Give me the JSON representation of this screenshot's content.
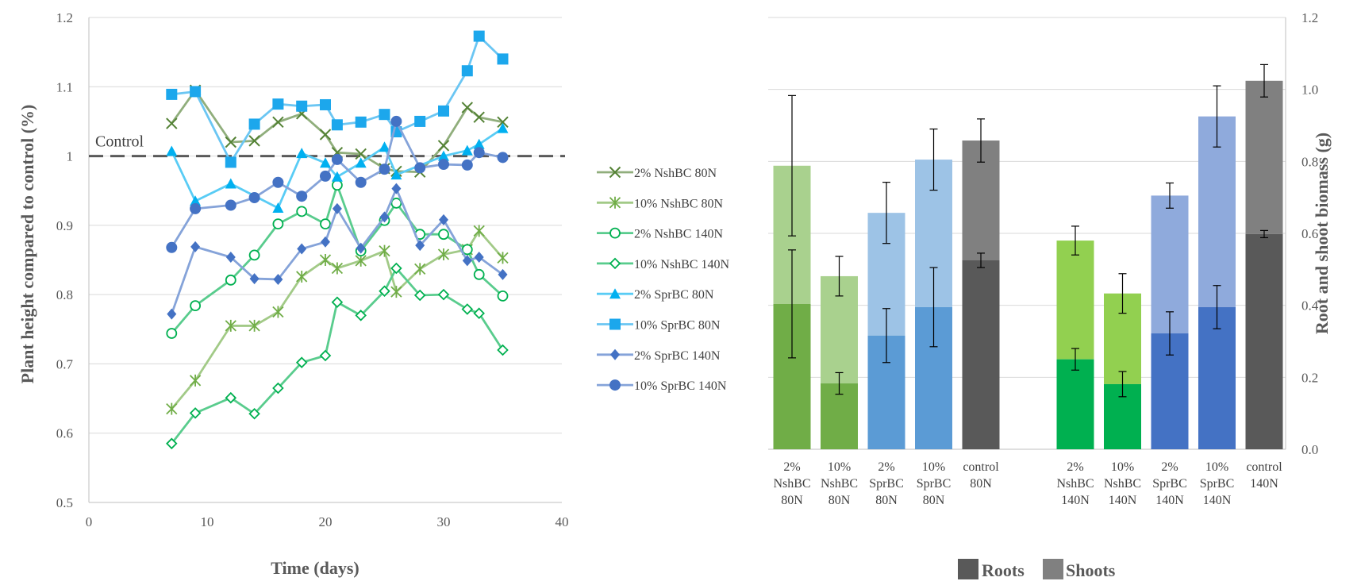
{
  "chart_data": [
    {
      "type": "line",
      "ylabel": "Plant height compared to control (%)",
      "xlabel": "Time (days)",
      "xlim": [
        0,
        40
      ],
      "ylim": [
        0.5,
        1.2
      ],
      "xticks": [
        "0",
        "10",
        "20",
        "30",
        "40"
      ],
      "yticks": [
        "0.5",
        "0.6",
        "0.7",
        "0.8",
        "0.9",
        "1",
        "1.1",
        "1.2"
      ],
      "grid": true,
      "legend": "right",
      "annotation": "Control",
      "control_line": 1.0,
      "series": [
        {
          "name": "2% NshBC 80N",
          "color": "#548235",
          "marker": "x",
          "x": [
            7,
            9,
            12,
            14,
            16,
            18,
            20,
            21,
            23,
            25,
            26,
            28,
            30,
            32,
            33,
            35
          ],
          "y": [
            1.047,
            1.095,
            1.02,
            1.022,
            1.049,
            1.061,
            1.031,
            1.005,
            1.003,
            0.982,
            0.978,
            0.977,
            1.015,
            1.07,
            1.056,
            1.049
          ]
        },
        {
          "name": "10% NshBC 80N",
          "color": "#70AD47",
          "marker": "asterisk",
          "x": [
            7,
            9,
            12,
            14,
            16,
            18,
            20,
            21,
            23,
            25,
            26,
            28,
            30,
            32,
            33,
            35
          ],
          "y": [
            0.635,
            0.676,
            0.755,
            0.755,
            0.775,
            0.826,
            0.85,
            0.838,
            0.849,
            0.863,
            0.804,
            0.837,
            0.858,
            0.865,
            0.892,
            0.853
          ]
        },
        {
          "name": "2% NshBC 140N",
          "color": "#00B050",
          "marker": "circle-open",
          "x": [
            7,
            9,
            12,
            14,
            16,
            18,
            20,
            21,
            23,
            25,
            26,
            28,
            30,
            32,
            33,
            35
          ],
          "y": [
            0.744,
            0.784,
            0.821,
            0.857,
            0.902,
            0.92,
            0.902,
            0.958,
            0.863,
            0.907,
            0.932,
            0.887,
            0.887,
            0.865,
            0.829,
            0.798
          ]
        },
        {
          "name": "10% NshBC 140N",
          "color": "#00B050",
          "marker": "diamond-open",
          "x": [
            7,
            9,
            12,
            14,
            16,
            18,
            20,
            21,
            23,
            25,
            26,
            28,
            30,
            32,
            33,
            35
          ],
          "y": [
            0.585,
            0.629,
            0.651,
            0.628,
            0.665,
            0.702,
            0.712,
            0.789,
            0.77,
            0.805,
            0.838,
            0.799,
            0.8,
            0.779,
            0.773,
            0.72
          ]
        },
        {
          "name": "2% SprBC 80N",
          "color": "#00B0F0",
          "marker": "triangle",
          "x": [
            7,
            9,
            12,
            16,
            18,
            20,
            21,
            23,
            25,
            26,
            30,
            32,
            33,
            35
          ],
          "y": [
            1.007,
            0.935,
            0.96,
            0.925,
            1.004,
            0.99,
            0.97,
            0.99,
            1.013,
            0.973,
            1.0,
            1.008,
            1.017,
            1.04
          ]
        },
        {
          "name": "10% SprBC 80N",
          "color": "#1CA7EC",
          "marker": "square",
          "x": [
            7,
            9,
            12,
            14,
            16,
            18,
            20,
            21,
            23,
            25,
            26,
            28,
            30,
            32,
            33,
            35
          ],
          "y": [
            1.089,
            1.093,
            0.991,
            1.046,
            1.075,
            1.072,
            1.074,
            1.045,
            1.049,
            1.06,
            1.035,
            1.05,
            1.065,
            1.123,
            1.173,
            1.14
          ]
        },
        {
          "name": "2% SprBC 140N",
          "color": "#4472C4",
          "marker": "diamond",
          "x": [
            7,
            9,
            12,
            14,
            16,
            18,
            20,
            21,
            23,
            25,
            26,
            28,
            30,
            32,
            33,
            35
          ],
          "y": [
            0.772,
            0.869,
            0.854,
            0.823,
            0.822,
            0.866,
            0.876,
            0.924,
            0.867,
            0.912,
            0.953,
            0.871,
            0.908,
            0.849,
            0.854,
            0.829
          ]
        },
        {
          "name": "10% SprBC 140N",
          "color": "#4472C4",
          "marker": "circle",
          "x": [
            7,
            9,
            12,
            14,
            16,
            18,
            20,
            21,
            23,
            25,
            26,
            28,
            30,
            32,
            33,
            35
          ],
          "y": [
            0.868,
            0.924,
            0.929,
            0.94,
            0.962,
            0.942,
            0.971,
            0.995,
            0.962,
            0.981,
            1.05,
            0.983,
            0.988,
            0.987,
            1.005,
            0.998
          ]
        }
      ]
    },
    {
      "type": "bar",
      "stacked": true,
      "ylabel": "Root and shoot biomass (g)",
      "ylim": [
        0,
        1.2
      ],
      "yticks": [
        "0.0",
        "0.2",
        "0.4",
        "0.6",
        "0.8",
        "1.0",
        "1.2"
      ],
      "grid": true,
      "legend": "bottom",
      "legend_labels": {
        "roots": "Roots",
        "shoots": "Shoots"
      },
      "groups": [
        {
          "labels": [
            [
              "2%",
              "NshBC",
              "80N"
            ],
            [
              "10%",
              "NshBC",
              "80N"
            ],
            [
              "2%",
              "SprBC",
              "80N"
            ],
            [
              "10%",
              "SprBC",
              "80N"
            ],
            [
              "control",
              "80N"
            ]
          ]
        },
        {
          "labels": [
            [
              "2%",
              "NshBC",
              "140N"
            ],
            [
              "10%",
              "NshBC",
              "140N"
            ],
            [
              "2%",
              "SprBC",
              "140N"
            ],
            [
              "10%",
              "SprBC",
              "140N"
            ],
            [
              "control",
              "140N"
            ]
          ]
        }
      ],
      "roots": [
        0.404,
        0.183,
        0.316,
        0.395,
        0.525,
        0.25,
        0.181,
        0.322,
        0.395,
        0.598
      ],
      "roots_err": [
        0.15,
        0.03,
        0.075,
        0.11,
        0.02,
        0.03,
        0.035,
        0.06,
        0.06,
        0.01
      ],
      "totals": [
        0.788,
        0.481,
        0.657,
        0.805,
        0.858,
        0.58,
        0.433,
        0.705,
        0.925,
        1.024
      ],
      "totals_err": [
        0.195,
        0.055,
        0.085,
        0.085,
        0.06,
        0.04,
        0.055,
        0.035,
        0.085,
        0.045
      ],
      "root_colors": [
        "#70AD47",
        "#70AD47",
        "#5B9BD5",
        "#5B9BD5",
        "#595959",
        "#00B050",
        "#00B050",
        "#4472C4",
        "#4472C4",
        "#595959"
      ],
      "shoot_colors": [
        "#A9D18E",
        "#A9D18E",
        "#9DC3E6",
        "#9DC3E6",
        "#808080",
        "#92D050",
        "#92D050",
        "#8FAADC",
        "#8FAADC",
        "#808080"
      ],
      "legend_colors": {
        "roots": "#595959",
        "shoots": "#808080"
      }
    }
  ]
}
